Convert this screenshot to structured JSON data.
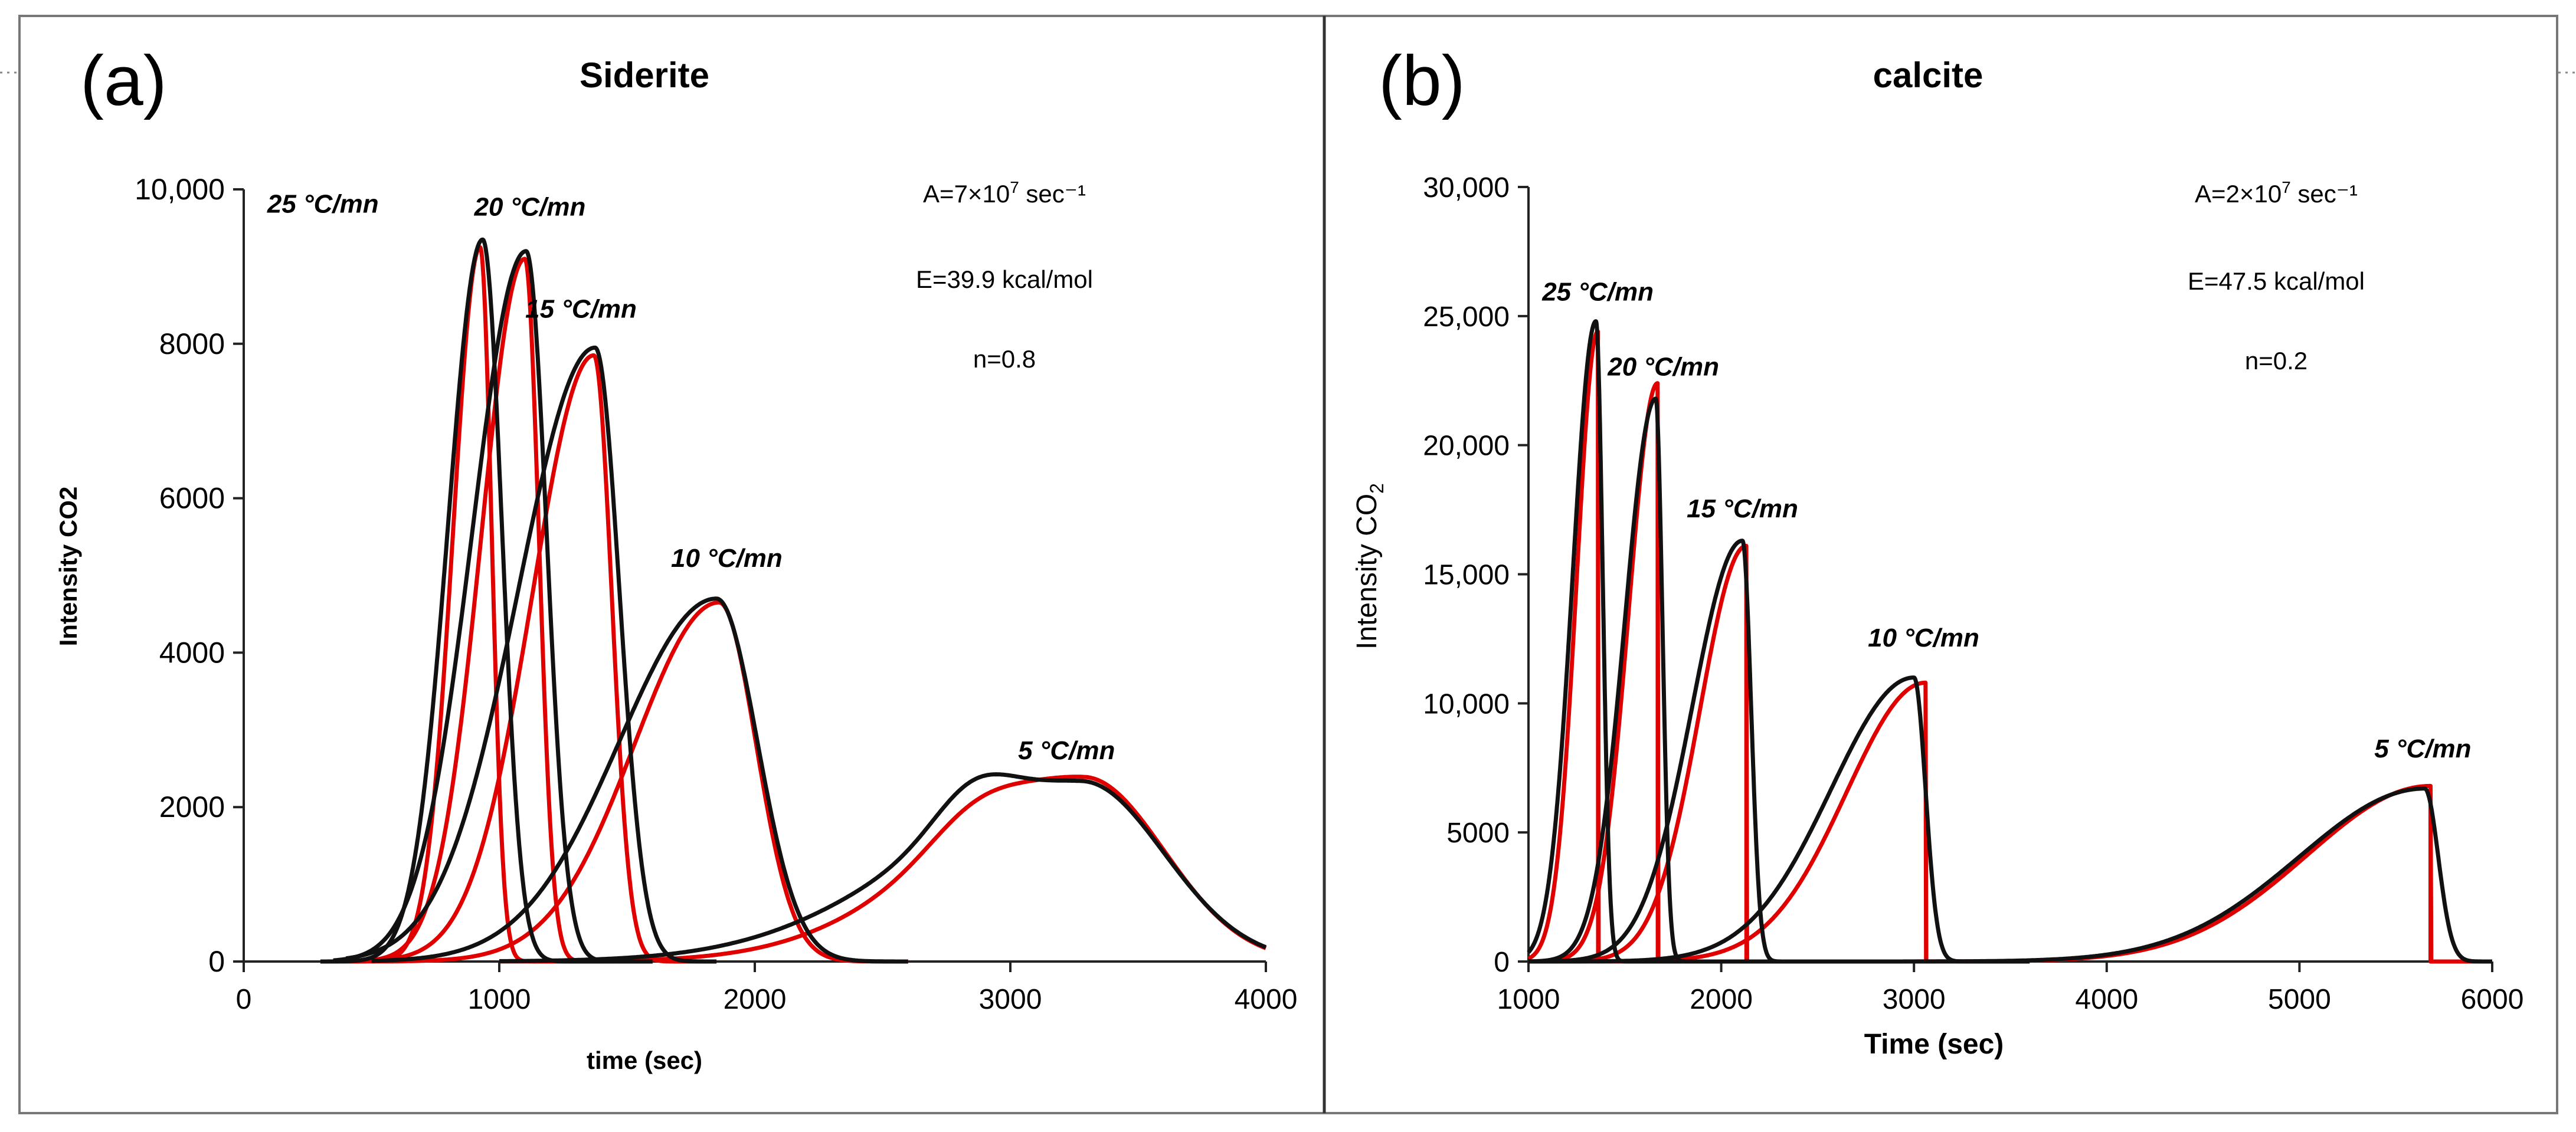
{
  "colors": {
    "model": "#e00000",
    "experiment": "#111111",
    "frame": "#222222"
  },
  "chart_data": [
    {
      "panel_label": "(a)",
      "type": "line",
      "title": "Siderite",
      "xlabel": "time (sec)",
      "ylabel": "Intensity CO2",
      "xlim": [
        0,
        4000
      ],
      "ylim": [
        0,
        10000
      ],
      "xticks": [
        0,
        1000,
        2000,
        3000,
        4000
      ],
      "xtick_labels": [
        "0",
        "1000",
        "2000",
        "3000",
        "4000"
      ],
      "yticks": [
        0,
        2000,
        4000,
        6000,
        8000,
        10000
      ],
      "ytick_labels": [
        "0",
        "2000",
        "4000",
        "6000",
        "8000",
        "10,000"
      ],
      "params": [
        {
          "prefix": "A=7×10",
          "sup": "7",
          "suffix": " sec⁻¹"
        },
        {
          "prefix": "E=39.9 kcal/mol",
          "sup": "",
          "suffix": ""
        },
        {
          "prefix": "n=0.8",
          "sup": "",
          "suffix": ""
        }
      ],
      "series": [
        {
          "name": "25 °C/mn",
          "label_at": [
            310,
            9700
          ],
          "experiment": {
            "peak_x": 935,
            "peak_y": 9350,
            "rise_w": 135,
            "fall_w": 75,
            "x_min": 300,
            "x_max": 1450
          },
          "model": {
            "peak_x": 925,
            "peak_y": 9250,
            "rise_w": 105,
            "fall_w": 45,
            "x_min": 300,
            "x_max": 1450
          }
        },
        {
          "name": "20 °C/mn",
          "label_at": [
            1120,
            9660
          ],
          "experiment": {
            "peak_x": 1105,
            "peak_y": 9200,
            "rise_w": 210,
            "fall_w": 80,
            "x_min": 350,
            "x_max": 1600
          },
          "model": {
            "peak_x": 1100,
            "peak_y": 9100,
            "rise_w": 170,
            "fall_w": 55,
            "x_min": 350,
            "x_max": 1600
          }
        },
        {
          "name": "15 °C/mn",
          "label_at": [
            1320,
            8340
          ],
          "experiment": {
            "peak_x": 1375,
            "peak_y": 7950,
            "rise_w": 300,
            "fall_w": 95,
            "x_min": 400,
            "x_max": 1850
          },
          "model": {
            "peak_x": 1370,
            "peak_y": 7850,
            "rise_w": 240,
            "fall_w": 70,
            "x_min": 400,
            "x_max": 1850
          }
        },
        {
          "name": "10 °C/mn",
          "label_at": [
            1890,
            5110
          ],
          "experiment": {
            "peak_x": 1850,
            "peak_y": 4700,
            "rise_w": 380,
            "fall_w": 160,
            "x_min": 500,
            "x_max": 2600
          },
          "model": {
            "peak_x": 1860,
            "peak_y": 4650,
            "rise_w": 330,
            "fall_w": 145,
            "x_min": 500,
            "x_max": 2600
          }
        },
        {
          "name": "5 °C/mn",
          "label_at": [
            3220,
            2620
          ],
          "experiment": {
            "peak_x": 3280,
            "peak_y": 2330,
            "rise_w": 640,
            "fall_w": 320,
            "x_min": 1000,
            "x_max": 4000,
            "shoulder_x": 2850,
            "shoulder_y": 480,
            "shoulder_w": 150
          },
          "model": {
            "peak_x": 3290,
            "peak_y": 2380,
            "rise_w": 560,
            "fall_w": 310,
            "x_min": 1000,
            "x_max": 4000,
            "shoulder_x": 2850,
            "shoulder_y": 300,
            "shoulder_w": 170
          }
        }
      ]
    },
    {
      "panel_label": "(b)",
      "type": "line",
      "title": "calcite",
      "xlabel": "Time (sec)",
      "ylabel_main": "Intensity CO",
      "ylabel_sub": "2",
      "xlim": [
        1000,
        6000
      ],
      "ylim": [
        0,
        30000
      ],
      "xticks": [
        1000,
        2000,
        3000,
        4000,
        5000,
        6000
      ],
      "xtick_labels": [
        "1000",
        "2000",
        "3000",
        "4000",
        "5000",
        "6000"
      ],
      "yticks": [
        0,
        5000,
        10000,
        15000,
        20000,
        25000,
        30000
      ],
      "ytick_labels": [
        "0",
        "5000",
        "10,000",
        "15,000",
        "20,000",
        "25,000",
        "30,000"
      ],
      "params": [
        {
          "prefix": "A=2×10",
          "sup": "7",
          "suffix": " sec⁻¹"
        },
        {
          "prefix": "E=47.5 kcal/mol",
          "sup": "",
          "suffix": ""
        },
        {
          "prefix": "n=0.2",
          "sup": "",
          "suffix": ""
        }
      ],
      "series": [
        {
          "name": "25 °C/mn",
          "label_at": [
            1360,
            25600
          ],
          "experiment": {
            "peak_x": 1350,
            "peak_y": 24800,
            "rise_w": 120,
            "fall_w": 35,
            "x_min": 1000,
            "x_max": 1800
          },
          "model": {
            "peak_x": 1360,
            "peak_y": 24400,
            "rise_w": 110,
            "fall_w": 0,
            "x_min": 1000,
            "x_max": 1800
          }
        },
        {
          "name": "20 °C/mn",
          "label_at": [
            1700,
            22700
          ],
          "experiment": {
            "peak_x": 1660,
            "peak_y": 21800,
            "rise_w": 160,
            "fall_w": 35,
            "x_min": 1000,
            "x_max": 2100
          },
          "model": {
            "peak_x": 1670,
            "peak_y": 22400,
            "rise_w": 150,
            "fall_w": 0,
            "x_min": 1000,
            "x_max": 2100
          }
        },
        {
          "name": "15 °C/mn",
          "label_at": [
            2110,
            17200
          ],
          "experiment": {
            "peak_x": 2110,
            "peak_y": 16300,
            "rise_w": 260,
            "fall_w": 45,
            "x_min": 1000,
            "x_max": 2600
          },
          "model": {
            "peak_x": 2130,
            "peak_y": 16100,
            "rise_w": 240,
            "fall_w": 0,
            "x_min": 1000,
            "x_max": 2600
          }
        },
        {
          "name": "10 °C/mn",
          "label_at": [
            3050,
            12200
          ],
          "experiment": {
            "peak_x": 3000,
            "peak_y": 11000,
            "rise_w": 430,
            "fall_w": 60,
            "x_min": 1000,
            "x_max": 3600
          },
          "model": {
            "peak_x": 3060,
            "peak_y": 10800,
            "rise_w": 410,
            "fall_w": 0,
            "x_min": 1000,
            "x_max": 3600
          }
        },
        {
          "name": "5 °C/mn",
          "label_at": [
            5640,
            7900
          ],
          "experiment": {
            "peak_x": 5650,
            "peak_y": 6700,
            "rise_w": 650,
            "fall_w": 70,
            "x_min": 2000,
            "x_max": 6000
          },
          "model": {
            "peak_x": 5680,
            "peak_y": 6800,
            "rise_w": 640,
            "fall_w": 0,
            "x_min": 2000,
            "x_max": 6000
          }
        }
      ]
    }
  ]
}
